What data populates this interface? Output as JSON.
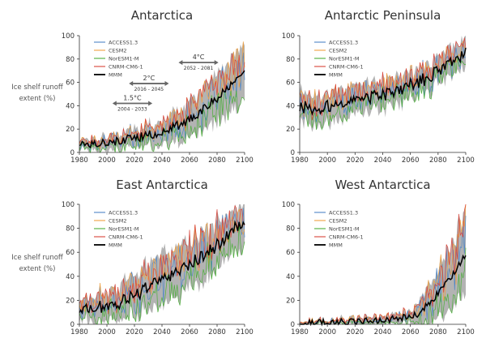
{
  "figure": {
    "y_axis_label_line1": "Ice shelf runoff",
    "y_axis_label_line2": "extent (%)"
  },
  "colors": {
    "ACCESS1.3": "#4f86c6",
    "CESM2": "#f0a040",
    "NorESM1-M": "#4cae3a",
    "CNRM-CM6-1": "#d9443a",
    "MMM": "#000000",
    "envelope": "#a6a6a6"
  },
  "chart_data": [
    {
      "type": "line",
      "title": "Antarctica",
      "show_ylabel": true,
      "xlim": [
        1980,
        2100
      ],
      "ylim": [
        0,
        100
      ],
      "x_ticks": [
        "1980",
        "2000",
        "2020",
        "2040",
        "2060",
        "2080",
        "2100"
      ],
      "y_ticks": [
        "0",
        "20",
        "40",
        "60",
        "80",
        "100"
      ],
      "legend": [
        "ACCESS1.3",
        "CESM2",
        "NorESM1-M",
        "CNRM-CM6-1",
        "MMM"
      ],
      "series_shape": {
        "mmm_start": 8,
        "mmm_mid_year": 2040,
        "mmm_mid": 18,
        "mmm_end": 68,
        "spread_start": 5,
        "spread_mid": 12,
        "spread_end": 30,
        "noise": 4
      },
      "annotations": [
        {
          "label": "1.5°C",
          "range": "2004 - 2033",
          "start": 2004,
          "end": 2033,
          "level": 42
        },
        {
          "label": "2°C",
          "range": "2016 - 2045",
          "start": 2016,
          "end": 2045,
          "level": 59
        },
        {
          "label": "4°C",
          "range": "2052 - 2081",
          "start": 2052,
          "end": 2081,
          "level": 77
        }
      ]
    },
    {
      "type": "line",
      "title": "Antarctic Peninsula",
      "show_ylabel": false,
      "xlim": [
        1980,
        2100
      ],
      "ylim": [
        0,
        100
      ],
      "x_ticks": [
        "1980",
        "2000",
        "2020",
        "2040",
        "2060",
        "2080",
        "2100"
      ],
      "y_ticks": [
        "0",
        "20",
        "40",
        "60",
        "80",
        "100"
      ],
      "legend": [
        "ACCESS1.3",
        "CESM2",
        "NorESM1-M",
        "CNRM-CM6-1",
        "MMM"
      ],
      "series_shape": {
        "mmm_start": 38,
        "mmm_mid_year": 2040,
        "mmm_mid": 50,
        "mmm_end": 84,
        "spread_start": 16,
        "spread_mid": 14,
        "spread_end": 14,
        "noise": 6
      },
      "annotations": []
    },
    {
      "type": "line",
      "title": "East Antarctica",
      "show_ylabel": true,
      "xlim": [
        1980,
        2100
      ],
      "ylim": [
        0,
        100
      ],
      "x_ticks": [
        "1980",
        "2000",
        "2020",
        "2040",
        "2060",
        "2080",
        "2100"
      ],
      "y_ticks": [
        "0",
        "20",
        "40",
        "60",
        "80",
        "100"
      ],
      "legend": [
        "ACCESS1.3",
        "CESM2",
        "NorESM1-M",
        "CNRM-CM6-1",
        "MMM"
      ],
      "series_shape": {
        "mmm_start": 12,
        "mmm_mid_year": 2040,
        "mmm_mid": 40,
        "mmm_end": 87,
        "spread_start": 10,
        "spread_mid": 25,
        "spread_end": 22,
        "noise": 6
      },
      "annotations": []
    },
    {
      "type": "line",
      "title": "West Antarctica",
      "show_ylabel": false,
      "xlim": [
        1980,
        2100
      ],
      "ylim": [
        0,
        100
      ],
      "x_ticks": [
        "1980",
        "2000",
        "2020",
        "2040",
        "2060",
        "2080",
        "2100"
      ],
      "y_ticks": [
        "0",
        "20",
        "40",
        "60",
        "80",
        "100"
      ],
      "legend": [
        "ACCESS1.3",
        "CESM2",
        "NorESM1-M",
        "CNRM-CM6-1",
        "MMM"
      ],
      "series_shape": {
        "mmm_start": 1,
        "mmm_mid_year": 2060,
        "mmm_mid": 6,
        "mmm_end": 58,
        "spread_start": 2,
        "spread_mid": 6,
        "spread_end": 42,
        "noise": 3
      },
      "annotations": []
    }
  ]
}
